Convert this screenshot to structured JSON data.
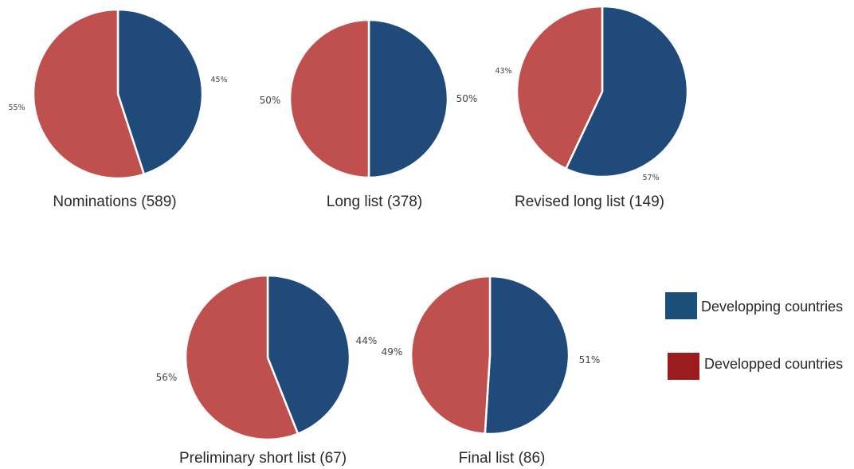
{
  "colors": {
    "developing": "#1f4a7a",
    "developed": "#c0504d",
    "developing_legend": "#1a4f7a",
    "developed_legend": "#9b1c1f"
  },
  "chart_data": [
    {
      "type": "pie",
      "title": "Nominations (589)",
      "series": [
        {
          "name": "Developping countries",
          "value": 45,
          "label": "45%"
        },
        {
          "name": "Developped countries",
          "value": 55,
          "label": "55%"
        }
      ]
    },
    {
      "type": "pie",
      "title": "Long list (378)",
      "series": [
        {
          "name": "Developping countries",
          "value": 50,
          "label": "50%"
        },
        {
          "name": "Developped countries",
          "value": 50,
          "label": "50%"
        }
      ]
    },
    {
      "type": "pie",
      "title": "Revised long list (149)",
      "series": [
        {
          "name": "Developping countries",
          "value": 57,
          "label": "57%"
        },
        {
          "name": "Developped countries",
          "value": 43,
          "label": "43%"
        }
      ]
    },
    {
      "type": "pie",
      "title": "Preliminary short list (67)",
      "series": [
        {
          "name": "Developping countries",
          "value": 44,
          "label": "44%"
        },
        {
          "name": "Developped countries",
          "value": 56,
          "label": "56%"
        }
      ]
    },
    {
      "type": "pie",
      "title": "Final list (86)",
      "series": [
        {
          "name": "Developping countries",
          "value": 51,
          "label": "51%"
        },
        {
          "name": "Developped countries",
          "value": 49,
          "label": "49%"
        }
      ]
    }
  ],
  "legend": {
    "items": [
      {
        "label": "Developping countries"
      },
      {
        "label": "Developped countries"
      }
    ]
  }
}
